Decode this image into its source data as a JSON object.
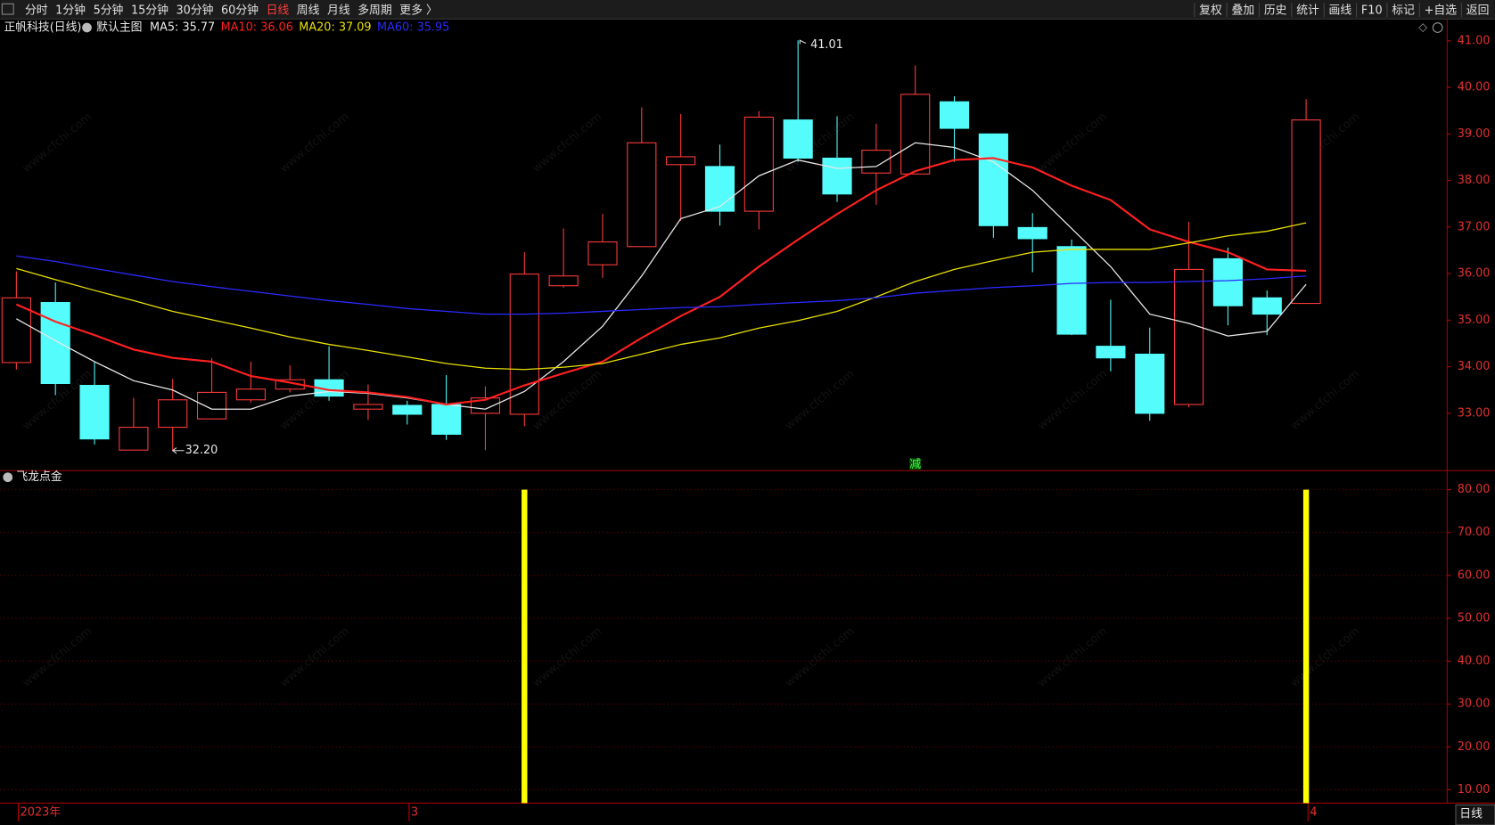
{
  "toolbar": {
    "left": [
      "分时",
      "1分钟",
      "5分钟",
      "15分钟",
      "30分钟",
      "60分钟",
      "日线",
      "周线",
      "月线",
      "多周期",
      "更多 〉"
    ],
    "right": [
      "复权",
      "叠加",
      "历史",
      "统计",
      "画线",
      "F10",
      "标记",
      "+自选",
      "返回"
    ]
  },
  "stock_label": "正帆科技(日线)",
  "template": "默认主图",
  "watermark": "www.cfchi.com",
  "footer": {
    "period": "日线"
  },
  "chart_data": [
    {
      "type": "candlestick",
      "categories": [
        "2023年",
        null,
        null,
        null,
        null,
        null,
        null,
        null,
        null,
        null,
        "3",
        null,
        null,
        null,
        null,
        null,
        null,
        null,
        null,
        null,
        null,
        null,
        null,
        null,
        null,
        null,
        null,
        null,
        null,
        null,
        null,
        null,
        null,
        "4"
      ],
      "open": [
        34.09,
        35.38,
        33.6,
        32.21,
        32.7,
        32.88,
        33.29,
        33.52,
        33.72,
        33.09,
        33.17,
        33.19,
        33.0,
        32.98,
        35.74,
        36.19,
        36.58,
        38.34,
        38.3,
        37.34,
        39.3,
        38.48,
        38.16,
        38.14,
        39.69,
        39.0,
        36.99,
        36.58,
        34.44,
        34.27,
        33.19,
        36.32,
        35.48,
        35.36
      ],
      "high": [
        36.05,
        35.81,
        34.11,
        33.33,
        33.74,
        34.19,
        34.11,
        34.03,
        34.44,
        33.62,
        33.27,
        33.82,
        33.58,
        36.46,
        36.97,
        37.28,
        39.57,
        39.43,
        38.77,
        39.49,
        41.01,
        39.38,
        39.22,
        40.47,
        39.81,
        39.0,
        37.3,
        36.73,
        35.44,
        34.84,
        37.11,
        36.56,
        35.64,
        39.75
      ],
      "low": [
        33.94,
        33.39,
        32.33,
        32.22,
        32.2,
        32.88,
        33.23,
        33.45,
        33.27,
        32.86,
        32.76,
        32.43,
        32.21,
        32.72,
        35.7,
        35.91,
        36.58,
        37.13,
        37.03,
        36.95,
        38.4,
        37.54,
        37.48,
        38.14,
        38.4,
        36.77,
        36.03,
        34.68,
        33.9,
        32.84,
        33.13,
        34.89,
        34.68,
        35.36
      ],
      "close": [
        35.48,
        33.64,
        32.45,
        32.7,
        33.29,
        33.45,
        33.52,
        33.72,
        33.37,
        33.19,
        32.98,
        32.55,
        33.33,
        35.99,
        35.95,
        36.68,
        38.81,
        38.51,
        37.34,
        39.36,
        38.48,
        37.71,
        38.65,
        39.85,
        39.12,
        37.03,
        36.75,
        34.7,
        34.19,
        33.0,
        36.09,
        35.31,
        35.13,
        39.3
      ],
      "high_labels": [
        null,
        null,
        null,
        null,
        null,
        null,
        null,
        null,
        null,
        null,
        null,
        null,
        null,
        null,
        null,
        null,
        null,
        null,
        null,
        null,
        "41.01",
        null,
        null,
        null,
        null,
        null,
        null,
        null,
        null,
        null,
        null,
        null,
        null,
        null
      ],
      "low_labels": [
        null,
        null,
        null,
        null,
        "32.20",
        null,
        null,
        null,
        null,
        null,
        null,
        null,
        null,
        null,
        null,
        null,
        null,
        null,
        null,
        null,
        null,
        null,
        null,
        null,
        null,
        null,
        null,
        null,
        null,
        null,
        null,
        null,
        null,
        null
      ],
      "signals": [
        null,
        null,
        null,
        null,
        null,
        null,
        null,
        null,
        null,
        null,
        null,
        null,
        null,
        null,
        null,
        null,
        null,
        null,
        null,
        null,
        null,
        null,
        null,
        "减",
        null,
        null,
        null,
        null,
        null,
        null,
        null,
        null,
        null,
        null
      ],
      "up_color": "#ff3c3c",
      "down_color": "#54fcfc",
      "series": [
        {
          "name": "MA5: 35.77",
          "color": "#e8e8e8",
          "values": [
            35.03,
            34.56,
            34.11,
            33.7,
            33.5,
            33.09,
            33.09,
            33.37,
            33.47,
            33.43,
            33.33,
            33.19,
            33.09,
            33.47,
            34.11,
            34.87,
            35.95,
            37.18,
            37.44,
            38.1,
            38.44,
            38.26,
            38.3,
            38.81,
            38.71,
            38.4,
            37.79,
            36.97,
            36.15,
            35.13,
            34.93,
            34.66,
            34.76,
            35.77
          ]
        },
        {
          "name": "MA10: 36.06",
          "color": "#ff2020",
          "values": [
            35.34,
            34.97,
            34.68,
            34.37,
            34.19,
            34.11,
            33.8,
            33.66,
            33.5,
            33.45,
            33.35,
            33.19,
            33.29,
            33.6,
            33.86,
            34.11,
            34.62,
            35.09,
            35.5,
            36.15,
            36.73,
            37.28,
            37.79,
            38.2,
            38.44,
            38.48,
            38.28,
            37.89,
            37.58,
            36.95,
            36.68,
            36.46,
            36.09,
            36.06
          ]
        },
        {
          "name": "MA20: 37.09",
          "color": "#e8e000",
          "values": [
            36.11,
            35.87,
            35.64,
            35.42,
            35.19,
            35.01,
            34.83,
            34.64,
            34.48,
            34.35,
            34.21,
            34.07,
            33.97,
            33.94,
            33.99,
            34.07,
            34.27,
            34.48,
            34.62,
            34.83,
            34.99,
            35.19,
            35.5,
            35.83,
            36.09,
            36.28,
            36.46,
            36.52,
            36.52,
            36.52,
            36.66,
            36.81,
            36.91,
            37.09
          ]
        },
        {
          "name": "MA60: 35.95",
          "color": "#2a2aff",
          "values": [
            36.38,
            36.26,
            36.11,
            35.97,
            35.83,
            35.72,
            35.62,
            35.52,
            35.42,
            35.34,
            35.25,
            35.19,
            35.13,
            35.13,
            35.15,
            35.19,
            35.23,
            35.27,
            35.29,
            35.34,
            35.38,
            35.42,
            35.48,
            35.58,
            35.64,
            35.7,
            35.74,
            35.79,
            35.81,
            35.81,
            35.83,
            35.85,
            35.89,
            35.95
          ]
        }
      ],
      "ylim": [
        31.79,
        41.16
      ],
      "yticks": [
        {
          "value": 33,
          "label": "33.00"
        },
        {
          "value": 34,
          "label": "34.00"
        },
        {
          "value": 35,
          "label": "35.00"
        },
        {
          "value": 36,
          "label": "36.00"
        },
        {
          "value": 37,
          "label": "37.00"
        },
        {
          "value": 38,
          "label": "38.00"
        },
        {
          "value": 39,
          "label": "39.00"
        },
        {
          "value": 40,
          "label": "40.00"
        },
        {
          "value": 41,
          "label": "41.00"
        }
      ],
      "grid": false
    },
    {
      "type": "bar",
      "title": "飞龙点金",
      "values": [
        null,
        null,
        null,
        null,
        null,
        null,
        null,
        null,
        null,
        null,
        null,
        null,
        null,
        80,
        null,
        null,
        null,
        null,
        null,
        null,
        null,
        null,
        null,
        null,
        null,
        null,
        null,
        null,
        null,
        null,
        null,
        null,
        null,
        80
      ],
      "color": "#ffff00",
      "ylim": [
        6.89,
        84.22
      ],
      "yticks": [
        {
          "value": 10,
          "label": "10.00"
        },
        {
          "value": 20,
          "label": "20.00"
        },
        {
          "value": 30,
          "label": "30.00"
        },
        {
          "value": 40,
          "label": "40.00"
        },
        {
          "value": 50,
          "label": "50.00"
        },
        {
          "value": 60,
          "label": "60.00"
        },
        {
          "value": 70,
          "label": "70.00"
        },
        {
          "value": 80,
          "label": "80.00"
        }
      ],
      "grid": true
    }
  ]
}
